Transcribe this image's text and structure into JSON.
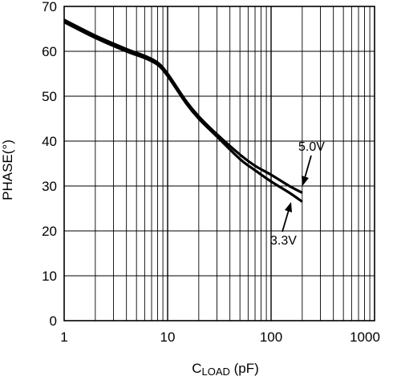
{
  "chart_data": {
    "type": "line",
    "xlabel_main": "C",
    "xlabel_sub": "LOAD",
    "xlabel_unit": " (pF)",
    "ylabel": "PHASE(°)",
    "xscale": "log",
    "xlim": [
      1,
      1000
    ],
    "ylim": [
      0,
      70
    ],
    "grid": true,
    "x_ticks": [
      {
        "value": 1,
        "label": "1"
      },
      {
        "value": 10,
        "label": "10"
      },
      {
        "value": 100,
        "label": "100"
      },
      {
        "value": 1000,
        "label": "1000"
      }
    ],
    "y_ticks": [
      {
        "value": 0,
        "label": "0"
      },
      {
        "value": 10,
        "label": "10"
      },
      {
        "value": 20,
        "label": "20"
      },
      {
        "value": 30,
        "label": "30"
      },
      {
        "value": 40,
        "label": "40"
      },
      {
        "value": 50,
        "label": "50"
      },
      {
        "value": 60,
        "label": "60"
      },
      {
        "value": 70,
        "label": "70"
      }
    ],
    "series": [
      {
        "name": "5.0V",
        "color": "#000000",
        "points": [
          [
            1,
            67
          ],
          [
            2,
            63.5
          ],
          [
            4,
            60.5
          ],
          [
            6,
            59
          ],
          [
            8,
            57.5
          ],
          [
            10,
            55
          ],
          [
            15,
            49
          ],
          [
            20,
            45.5
          ],
          [
            30,
            41.5
          ],
          [
            50,
            37
          ],
          [
            70,
            34.5
          ],
          [
            100,
            32.5
          ],
          [
            150,
            30
          ],
          [
            200,
            28.5
          ]
        ]
      },
      {
        "name": "3.3V",
        "color": "#000000",
        "points": [
          [
            1,
            66.5
          ],
          [
            2,
            63
          ],
          [
            4,
            60
          ],
          [
            6,
            58.5
          ],
          [
            8,
            57
          ],
          [
            10,
            54.5
          ],
          [
            15,
            48.5
          ],
          [
            20,
            45
          ],
          [
            30,
            41
          ],
          [
            50,
            36
          ],
          [
            70,
            33.5
          ],
          [
            100,
            31
          ],
          [
            150,
            28.5
          ],
          [
            200,
            26.5
          ]
        ]
      }
    ],
    "annotations": [
      {
        "text": "5.0V",
        "series": "5.0V"
      },
      {
        "text": "3.3V",
        "series": "3.3V"
      }
    ]
  }
}
